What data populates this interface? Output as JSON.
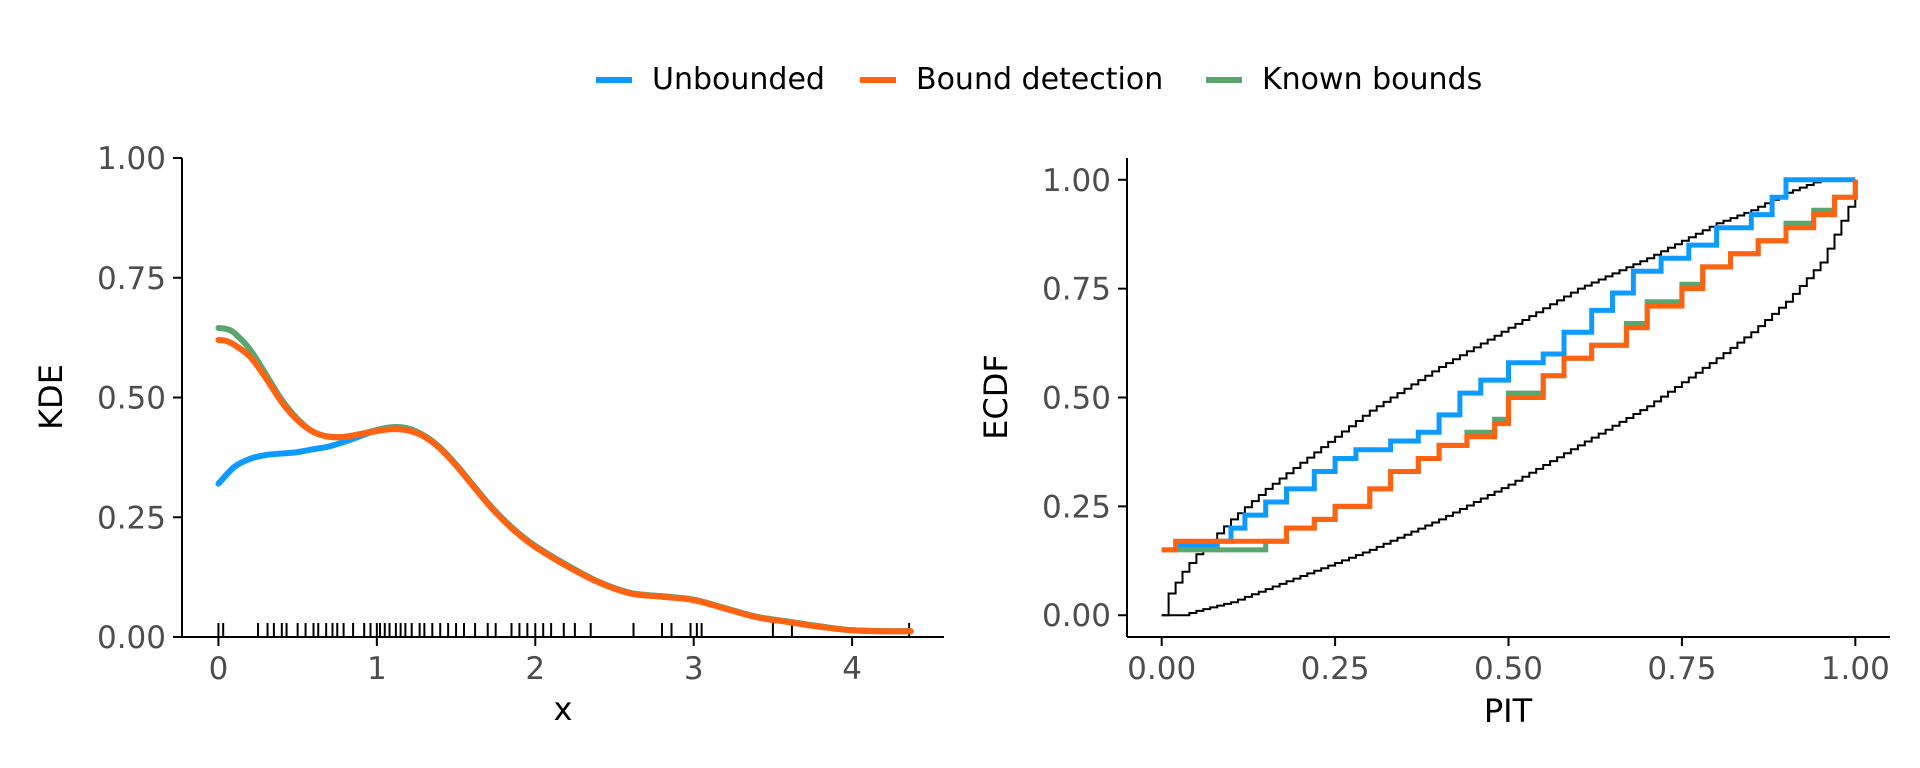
{
  "legend": {
    "placement": "top-center",
    "items": [
      {
        "label": "Unbounded",
        "color": "#0f9aff"
      },
      {
        "label": "Bound detection",
        "color": "#ff6211"
      },
      {
        "label": "Known bounds",
        "color": "#5ba56e"
      }
    ]
  },
  "colors": {
    "axis": "#000000",
    "tick_text": "#4d4d4d",
    "envelope": "#000000"
  },
  "chart_data": [
    {
      "type": "line",
      "xlabel": "x",
      "ylabel": "KDE",
      "xlim": [
        -0.23,
        4.58
      ],
      "ylim": [
        0,
        1
      ],
      "xticks": [
        0,
        1,
        2,
        3,
        4
      ],
      "xtick_labels": [
        "0",
        "1",
        "2",
        "3",
        "4"
      ],
      "yticks": [
        0,
        0.25,
        0.5,
        0.75,
        1
      ],
      "ytick_labels": [
        "0.00",
        "0.25",
        "0.50",
        "0.75",
        "1.00"
      ],
      "grid": false,
      "series": [
        {
          "name": "Unbounded",
          "color": "#0f9aff",
          "x": [
            0,
            0.1,
            0.2,
            0.3,
            0.4,
            0.5,
            0.6,
            0.7,
            0.8,
            0.9,
            1.0,
            1.1,
            1.2,
            1.3,
            1.4,
            1.5,
            1.6,
            1.7,
            1.8,
            1.9,
            2.0,
            2.2,
            2.4,
            2.6,
            2.8,
            3.0,
            3.2,
            3.4,
            3.6,
            3.8,
            4.0,
            4.2,
            4.37
          ],
          "y": [
            0.32,
            0.355,
            0.372,
            0.38,
            0.383,
            0.386,
            0.392,
            0.398,
            0.408,
            0.42,
            0.432,
            0.438,
            0.435,
            0.42,
            0.395,
            0.36,
            0.32,
            0.28,
            0.245,
            0.215,
            0.19,
            0.15,
            0.115,
            0.092,
            0.085,
            0.078,
            0.06,
            0.042,
            0.032,
            0.022,
            0.014,
            0.012,
            0.012
          ]
        },
        {
          "name": "Known bounds",
          "color": "#5ba56e",
          "x": [
            0,
            0.05,
            0.1,
            0.2,
            0.3,
            0.4,
            0.5,
            0.6,
            0.7,
            0.8,
            0.9,
            1.0,
            1.1,
            1.2,
            1.3,
            1.4,
            1.5,
            1.6,
            1.7,
            1.8,
            1.9,
            2.0,
            2.2,
            2.4,
            2.6,
            2.8,
            3.0,
            3.2,
            3.4,
            3.6,
            3.8,
            4.0,
            4.2,
            4.37
          ],
          "y": [
            0.645,
            0.643,
            0.635,
            0.6,
            0.548,
            0.495,
            0.455,
            0.428,
            0.418,
            0.418,
            0.424,
            0.432,
            0.438,
            0.435,
            0.42,
            0.395,
            0.36,
            0.32,
            0.28,
            0.245,
            0.215,
            0.19,
            0.15,
            0.115,
            0.092,
            0.085,
            0.078,
            0.06,
            0.042,
            0.032,
            0.022,
            0.014,
            0.012,
            0.012
          ]
        },
        {
          "name": "Bound detection",
          "color": "#ff6211",
          "x": [
            0,
            0.05,
            0.1,
            0.2,
            0.3,
            0.4,
            0.5,
            0.6,
            0.7,
            0.8,
            0.9,
            1.0,
            1.1,
            1.2,
            1.3,
            1.4,
            1.5,
            1.6,
            1.7,
            1.8,
            1.9,
            2.0,
            2.2,
            2.4,
            2.6,
            2.8,
            3.0,
            3.2,
            3.4,
            3.6,
            3.8,
            4.0,
            4.2,
            4.37
          ],
          "y": [
            0.62,
            0.618,
            0.61,
            0.585,
            0.54,
            0.49,
            0.452,
            0.428,
            0.418,
            0.418,
            0.424,
            0.43,
            0.434,
            0.431,
            0.418,
            0.393,
            0.358,
            0.318,
            0.278,
            0.243,
            0.213,
            0.188,
            0.148,
            0.114,
            0.091,
            0.084,
            0.077,
            0.059,
            0.041,
            0.031,
            0.021,
            0.014,
            0.012,
            0.012
          ]
        }
      ],
      "rug": [
        0.0,
        0.03,
        0.25,
        0.31,
        0.35,
        0.4,
        0.43,
        0.5,
        0.55,
        0.6,
        0.63,
        0.68,
        0.72,
        0.75,
        0.79,
        0.85,
        0.92,
        0.96,
        1.0,
        1.02,
        1.05,
        1.08,
        1.12,
        1.15,
        1.18,
        1.22,
        1.27,
        1.3,
        1.35,
        1.4,
        1.45,
        1.5,
        1.55,
        1.62,
        1.7,
        1.75,
        1.85,
        1.9,
        1.95,
        2.0,
        2.05,
        2.1,
        2.18,
        2.25,
        2.35,
        2.62,
        2.8,
        2.86,
        2.98,
        3.02,
        3.05,
        3.5,
        3.62,
        4.36
      ]
    },
    {
      "type": "line",
      "xlabel": "PIT",
      "ylabel": "ECDF",
      "xlim": [
        -0.05,
        1.05
      ],
      "ylim": [
        -0.05,
        1.05
      ],
      "xticks": [
        0,
        0.25,
        0.5,
        0.75,
        1
      ],
      "xtick_labels": [
        "0.00",
        "0.25",
        "0.50",
        "0.75",
        "1.00"
      ],
      "yticks": [
        0,
        0.25,
        0.5,
        0.75,
        1
      ],
      "ytick_labels": [
        "0.00",
        "0.25",
        "0.50",
        "0.75",
        "1.00"
      ],
      "grid": false,
      "envelope": {
        "x": [
          0,
          0.01,
          0.03,
          0.05,
          0.1,
          0.15,
          0.2,
          0.25,
          0.3,
          0.4,
          0.5,
          0.6,
          0.7,
          0.8,
          0.85,
          0.9,
          0.95,
          1.0
        ],
        "lower": [
          0,
          0,
          0,
          0.01,
          0.03,
          0.06,
          0.09,
          0.12,
          0.15,
          0.22,
          0.3,
          0.39,
          0.48,
          0.59,
          0.65,
          0.72,
          0.81,
          0.97
        ],
        "upper": [
          0,
          0.05,
          0.1,
          0.14,
          0.22,
          0.29,
          0.35,
          0.41,
          0.47,
          0.57,
          0.66,
          0.75,
          0.82,
          0.9,
          0.93,
          0.97,
          1.0,
          1.0
        ]
      },
      "series": [
        {
          "name": "Unbounded",
          "color": "#0f9aff",
          "x": [
            0.02,
            0.08,
            0.1,
            0.12,
            0.15,
            0.18,
            0.22,
            0.25,
            0.28,
            0.33,
            0.37,
            0.4,
            0.43,
            0.46,
            0.5,
            0.55,
            0.58,
            0.62,
            0.65,
            0.68,
            0.72,
            0.76,
            0.8,
            0.85,
            0.88,
            0.9,
            1.0
          ],
          "y": [
            0.16,
            0.17,
            0.2,
            0.23,
            0.26,
            0.29,
            0.33,
            0.36,
            0.38,
            0.4,
            0.42,
            0.46,
            0.51,
            0.54,
            0.58,
            0.6,
            0.65,
            0.7,
            0.74,
            0.79,
            0.82,
            0.85,
            0.89,
            0.92,
            0.96,
            1.0,
            1.0
          ]
        },
        {
          "name": "Known bounds",
          "color": "#5ba56e",
          "x": [
            0.0,
            0.15,
            0.18,
            0.22,
            0.25,
            0.3,
            0.33,
            0.37,
            0.4,
            0.44,
            0.48,
            0.5,
            0.55,
            0.58,
            0.62,
            0.67,
            0.7,
            0.75,
            0.78,
            0.82,
            0.86,
            0.9,
            0.94,
            0.97,
            1.0
          ],
          "y": [
            0.15,
            0.17,
            0.2,
            0.22,
            0.25,
            0.29,
            0.33,
            0.36,
            0.39,
            0.42,
            0.45,
            0.51,
            0.55,
            0.59,
            0.62,
            0.67,
            0.72,
            0.76,
            0.8,
            0.83,
            0.86,
            0.9,
            0.93,
            0.96,
            1.0
          ]
        },
        {
          "name": "Bound detection",
          "color": "#ff6211",
          "x": [
            0.0,
            0.02,
            0.15,
            0.18,
            0.22,
            0.25,
            0.3,
            0.33,
            0.37,
            0.4,
            0.44,
            0.48,
            0.5,
            0.55,
            0.58,
            0.62,
            0.67,
            0.7,
            0.75,
            0.78,
            0.82,
            0.86,
            0.9,
            0.94,
            0.97,
            1.0
          ],
          "y": [
            0.15,
            0.17,
            0.17,
            0.2,
            0.22,
            0.25,
            0.29,
            0.33,
            0.36,
            0.39,
            0.41,
            0.44,
            0.5,
            0.55,
            0.59,
            0.62,
            0.66,
            0.71,
            0.75,
            0.8,
            0.83,
            0.86,
            0.89,
            0.92,
            0.96,
            1.0
          ]
        }
      ]
    }
  ]
}
